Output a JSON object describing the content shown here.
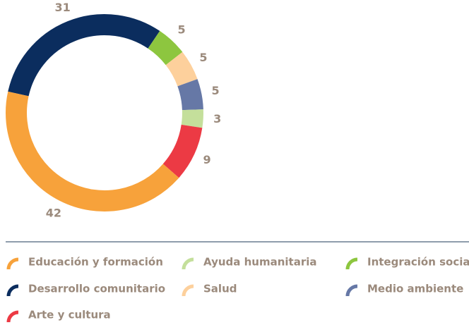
{
  "chart_data": {
    "type": "pie",
    "categories": [
      "Desarrollo comunitario",
      "Integración social",
      "Salud",
      "Medio ambiente",
      "Ayuda humanitaria",
      "Arte y cultura",
      "Educación y formación"
    ],
    "values": [
      31,
      5,
      5,
      5,
      3,
      9,
      42
    ],
    "colors": [
      "#0b2d5e",
      "#8dc63f",
      "#fdd09c",
      "#6678a6",
      "#c4df9b",
      "#ec3a44",
      "#f7a23b"
    ]
  }
}
